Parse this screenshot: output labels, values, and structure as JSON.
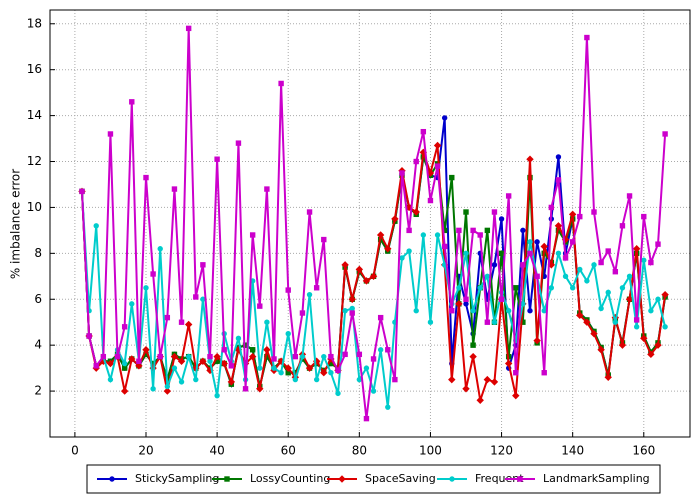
{
  "chart_data": {
    "type": "line",
    "ylabel": "% imbalance error",
    "xlim": [
      -7,
      173
    ],
    "ylim": [
      0,
      18.6
    ],
    "xticks": [
      0,
      20,
      40,
      60,
      80,
      100,
      120,
      140,
      160
    ],
    "yticks": [
      2,
      4,
      6,
      8,
      10,
      12,
      14,
      16,
      18
    ],
    "grid": true,
    "legend": "bottom",
    "x": [
      2,
      4,
      6,
      8,
      10,
      12,
      14,
      16,
      18,
      20,
      22,
      24,
      26,
      28,
      30,
      32,
      34,
      36,
      38,
      40,
      42,
      44,
      46,
      48,
      50,
      52,
      54,
      56,
      58,
      60,
      62,
      64,
      66,
      68,
      70,
      72,
      74,
      76,
      78,
      80,
      82,
      84,
      86,
      88,
      90,
      92,
      94,
      96,
      98,
      100,
      102,
      104,
      106,
      108,
      110,
      112,
      114,
      116,
      118,
      120,
      122,
      124,
      126,
      128,
      130,
      132,
      134,
      136,
      138,
      140,
      142,
      144,
      146,
      148,
      150,
      152,
      154,
      156,
      158,
      160,
      162,
      164,
      166
    ],
    "series": [
      {
        "name": "StickySampling",
        "color": "#0000cc",
        "marker": "circle",
        "values": [
          10.7,
          4.4,
          3.1,
          3.3,
          3.3,
          3.6,
          3.0,
          3.4,
          3.1,
          3.6,
          3.2,
          3.5,
          2.5,
          3.6,
          3.4,
          3.5,
          3.0,
          3.3,
          3.0,
          3.3,
          3.2,
          2.3,
          3.9,
          4.0,
          3.8,
          2.2,
          3.5,
          3.0,
          3.3,
          2.8,
          2.8,
          3.4,
          3.0,
          3.2,
          2.9,
          3.2,
          3.0,
          7.4,
          6.0,
          7.2,
          6.8,
          7.0,
          8.6,
          8.1,
          9.4,
          11.4,
          10.0,
          9.7,
          12.2,
          11.4,
          11.3,
          13.9,
          3.2,
          7.0,
          5.8,
          4.5,
          8.0,
          6.0,
          7.5,
          9.5,
          3.0,
          4.0,
          9.0,
          5.5,
          8.5,
          7.0,
          9.5,
          12.2,
          8.0,
          9.5,
          5.4,
          5.1,
          4.6,
          3.9,
          2.7,
          5.1,
          4.1,
          6.0,
          8.0,
          4.4,
          3.7,
          4.1,
          6.1
        ]
      },
      {
        "name": "LossyCounting",
        "color": "#007700",
        "marker": "square",
        "values": [
          10.7,
          4.4,
          3.1,
          3.3,
          3.3,
          3.6,
          3.0,
          3.4,
          3.1,
          3.6,
          3.2,
          3.5,
          2.5,
          3.6,
          3.4,
          3.5,
          3.0,
          3.3,
          3.0,
          3.3,
          3.2,
          2.3,
          3.9,
          4.0,
          3.8,
          2.2,
          3.5,
          3.0,
          3.3,
          2.8,
          2.8,
          3.4,
          3.0,
          3.2,
          2.9,
          3.2,
          3.0,
          7.4,
          6.0,
          7.2,
          6.8,
          7.0,
          8.6,
          8.1,
          9.4,
          11.4,
          10.0,
          9.7,
          12.2,
          11.4,
          11.9,
          9.0,
          11.3,
          5.8,
          9.8,
          4.0,
          6.5,
          9.0,
          5.0,
          8.0,
          3.5,
          6.5,
          5.0,
          11.3,
          4.1,
          8.0,
          7.6,
          9.0,
          8.5,
          9.5,
          5.4,
          5.1,
          4.6,
          3.9,
          2.7,
          5.1,
          4.1,
          6.0,
          8.0,
          4.4,
          3.7,
          4.1,
          6.1
        ]
      },
      {
        "name": "SpaceSaving",
        "color": "#dd0000",
        "marker": "diamond",
        "values": [
          10.7,
          4.4,
          3.0,
          3.3,
          3.2,
          3.5,
          2.0,
          3.4,
          3.1,
          3.8,
          3.0,
          3.5,
          2.0,
          3.5,
          3.3,
          4.9,
          3.0,
          3.3,
          2.9,
          3.5,
          3.2,
          2.4,
          3.8,
          3.2,
          3.5,
          2.1,
          3.8,
          2.9,
          3.3,
          3.0,
          2.6,
          3.6,
          3.0,
          3.3,
          2.8,
          3.4,
          2.9,
          7.5,
          6.0,
          7.3,
          6.8,
          7.0,
          8.8,
          8.2,
          9.5,
          11.6,
          10.0,
          9.8,
          12.4,
          11.5,
          12.7,
          7.5,
          2.5,
          5.8,
          2.1,
          3.5,
          1.6,
          2.5,
          2.4,
          6.0,
          3.2,
          1.8,
          5.8,
          12.1,
          4.2,
          8.3,
          7.5,
          9.2,
          8.6,
          9.7,
          5.3,
          5.0,
          4.5,
          3.8,
          2.6,
          5.2,
          4.0,
          6.0,
          8.2,
          4.3,
          3.6,
          4.0,
          6.2
        ]
      },
      {
        "name": "Frequent",
        "color": "#00cccc",
        "marker": "circle",
        "values": [
          10.7,
          5.5,
          9.2,
          3.5,
          2.5,
          3.8,
          3.2,
          5.8,
          3.3,
          6.5,
          2.1,
          8.2,
          2.2,
          3.0,
          2.4,
          3.5,
          2.5,
          6.0,
          3.3,
          1.8,
          4.5,
          3.3,
          4.3,
          2.5,
          6.8,
          3.0,
          5.0,
          3.0,
          2.8,
          4.5,
          2.5,
          3.5,
          6.2,
          2.5,
          3.5,
          2.8,
          1.9,
          5.5,
          5.6,
          2.5,
          3.0,
          2.0,
          3.8,
          1.3,
          5.0,
          7.8,
          8.1,
          5.5,
          8.8,
          5.0,
          8.8,
          7.5,
          5.8,
          6.5,
          8.0,
          5.5,
          6.5,
          7.0,
          5.0,
          6.3,
          5.5,
          4.2,
          5.8,
          8.5,
          7.0,
          5.5,
          6.5,
          8.0,
          7.0,
          6.5,
          7.3,
          6.8,
          7.5,
          5.6,
          6.3,
          5.0,
          6.5,
          7.0,
          4.8,
          7.7,
          5.5,
          6.0,
          4.8
        ]
      },
      {
        "name": "LandmarkSampling",
        "color": "#cc00cc",
        "marker": "square",
        "values": [
          10.7,
          4.4,
          3.1,
          3.5,
          13.2,
          3.5,
          4.8,
          14.6,
          3.3,
          11.3,
          7.1,
          3.5,
          5.2,
          10.8,
          5.0,
          17.8,
          6.1,
          7.5,
          3.5,
          12.1,
          3.8,
          3.1,
          12.8,
          2.1,
          8.8,
          5.7,
          10.8,
          3.4,
          15.4,
          6.4,
          3.5,
          5.4,
          9.8,
          6.5,
          8.6,
          3.5,
          2.9,
          3.6,
          5.4,
          3.6,
          0.8,
          3.4,
          5.2,
          3.8,
          2.5,
          11.5,
          9.0,
          12.0,
          13.3,
          10.3,
          11.8,
          8.3,
          5.5,
          9.0,
          6.0,
          9.0,
          8.8,
          5.0,
          9.8,
          6.0,
          10.5,
          2.8,
          7.5,
          8.0,
          7.0,
          2.8,
          10.0,
          11.2,
          7.8,
          8.5,
          9.6,
          17.4,
          9.8,
          7.6,
          8.1,
          7.2,
          9.2,
          10.5,
          5.1,
          9.6,
          7.6,
          8.4,
          13.2
        ]
      }
    ]
  }
}
